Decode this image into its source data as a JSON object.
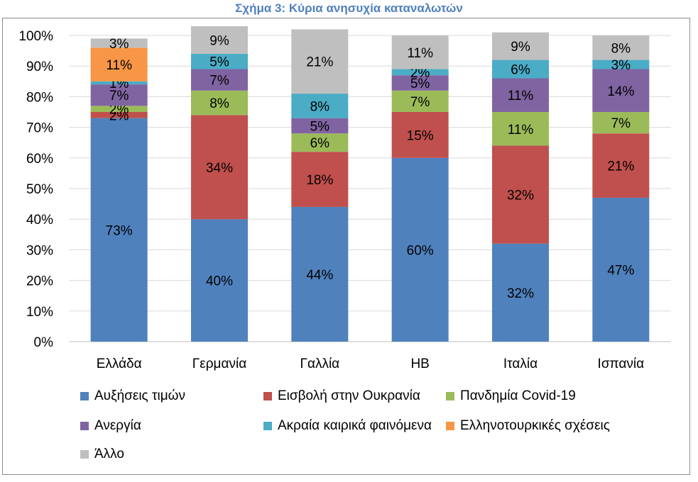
{
  "chart_data": {
    "type": "bar",
    "stacked": true,
    "title": "Σχήμα 3: Κύρια ανησυχία καταναλωτών",
    "categories": [
      "Ελλάδα",
      "Γερμανία",
      "Γαλλία",
      "ΗΒ",
      "Ιταλία",
      "Ισπανία"
    ],
    "y_ticks": [
      "0%",
      "10%",
      "20%",
      "30%",
      "40%",
      "50%",
      "60%",
      "70%",
      "80%",
      "90%",
      "100%"
    ],
    "ylim": [
      0,
      100
    ],
    "grid": true,
    "legend_position": "bottom",
    "series": [
      {
        "name": "Αυξήσεις τιμών",
        "color": "#4f81bd",
        "values": [
          73,
          40,
          44,
          60,
          32,
          47
        ],
        "labels": [
          "73%",
          "40%",
          "44%",
          "60%",
          "32%",
          "47%"
        ]
      },
      {
        "name": "Εισβολή στην Ουκρανία",
        "color": "#c0504d",
        "values": [
          2,
          34,
          18,
          15,
          32,
          21
        ],
        "labels": [
          "2%",
          "34%",
          "18%",
          "15%",
          "32%",
          "21%"
        ]
      },
      {
        "name": "Πανδημία Covid-19",
        "color": "#9bbb59",
        "values": [
          2,
          8,
          6,
          7,
          11,
          7
        ],
        "labels": [
          "2%",
          "8%",
          "6%",
          "7%",
          "11%",
          "7%"
        ]
      },
      {
        "name": "Ανεργία",
        "color": "#8064a2",
        "values": [
          7,
          7,
          5,
          5,
          11,
          14
        ],
        "labels": [
          "7%",
          "7%",
          "5%",
          "5%",
          "11%",
          "14%"
        ]
      },
      {
        "name": "Ακραία καιρικά φαινόμενα",
        "color": "#4bacc6",
        "values": [
          1,
          5,
          8,
          2,
          6,
          3
        ],
        "labels": [
          "1%",
          "5%",
          "8%",
          "2%",
          "6%",
          "3%"
        ]
      },
      {
        "name": "Ελληνοτουρκικές σχέσεις",
        "color": "#f79646",
        "values": [
          11,
          0,
          0,
          0,
          0,
          0
        ],
        "labels": [
          "11%",
          "",
          "",
          "",
          "",
          ""
        ]
      },
      {
        "name": "Άλλο",
        "color": "#bfbfbf",
        "values": [
          3,
          9,
          21,
          11,
          9,
          8
        ],
        "labels": [
          "3%",
          "9%",
          "21%",
          "11%",
          "9%",
          "8%"
        ]
      }
    ]
  }
}
